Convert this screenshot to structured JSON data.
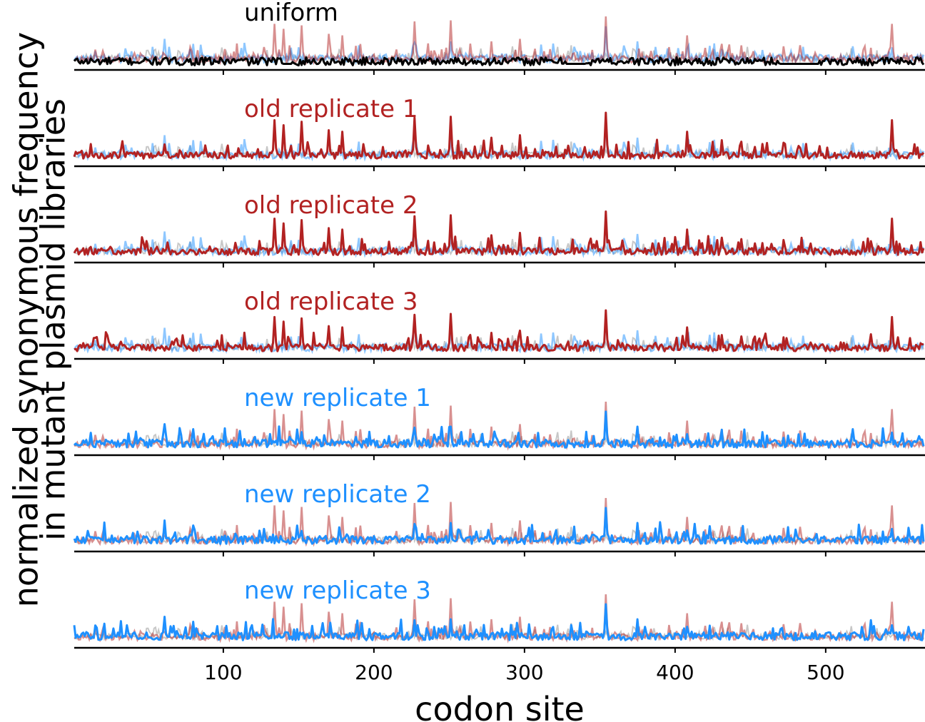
{
  "chart_data": {
    "type": "line",
    "xlabel": "codon site",
    "ylabel_line1": "normalized synonymous frequency",
    "ylabel_line2": "in mutant plasmid libraries",
    "xlim": [
      1,
      565
    ],
    "xticks": [
      100,
      200,
      300,
      400,
      500
    ],
    "grid": false,
    "colors": {
      "old": "#b22222",
      "new": "#1e90ff",
      "uniform": "#000000",
      "background_gray": "#999999"
    },
    "panels": [
      {
        "label": "uniform",
        "label_color": "#000000",
        "series_color": "#000000",
        "description_values": {
          "baseline": 0.2,
          "noise_amplitude": 0.15,
          "flat_segments": [
            [
              140,
              145
            ],
            [
              328,
              340
            ],
            [
              470,
              495
            ]
          ]
        }
      },
      {
        "label": "old replicate 1",
        "label_color": "#b22222",
        "series_color": "#b22222"
      },
      {
        "label": "old replicate 2",
        "label_color": "#b22222",
        "series_color": "#b22222"
      },
      {
        "label": "old replicate 3",
        "label_color": "#b22222",
        "series_color": "#b22222"
      },
      {
        "label": "new replicate 1",
        "label_color": "#1e90ff",
        "series_color": "#1e90ff"
      },
      {
        "label": "new replicate 2",
        "label_color": "#1e90ff",
        "series_color": "#1e90ff"
      },
      {
        "label": "new replicate 3",
        "label_color": "#1e90ff",
        "series_color": "#1e90ff"
      }
    ],
    "old_peaks": [
      {
        "x": 134,
        "y": 0.85
      },
      {
        "x": 140,
        "y": 0.75
      },
      {
        "x": 152,
        "y": 0.82
      },
      {
        "x": 170,
        "y": 0.65
      },
      {
        "x": 179,
        "y": 0.62
      },
      {
        "x": 227,
        "y": 0.9
      },
      {
        "x": 251,
        "y": 0.92
      },
      {
        "x": 278,
        "y": 0.5
      },
      {
        "x": 297,
        "y": 0.55
      },
      {
        "x": 354,
        "y": 1.0
      },
      {
        "x": 408,
        "y": 0.62
      },
      {
        "x": 431,
        "y": 0.45
      },
      {
        "x": 444,
        "y": 0.42
      },
      {
        "x": 472,
        "y": 0.4
      },
      {
        "x": 544,
        "y": 0.85
      }
    ],
    "new_peaks": [
      {
        "x": 61,
        "y": 0.55
      },
      {
        "x": 80,
        "y": 0.45
      },
      {
        "x": 227,
        "y": 0.48
      },
      {
        "x": 251,
        "y": 0.5
      },
      {
        "x": 354,
        "y": 0.8
      },
      {
        "x": 375,
        "y": 0.5
      },
      {
        "x": 408,
        "y": 0.35
      },
      {
        "x": 544,
        "y": 0.38
      }
    ]
  }
}
